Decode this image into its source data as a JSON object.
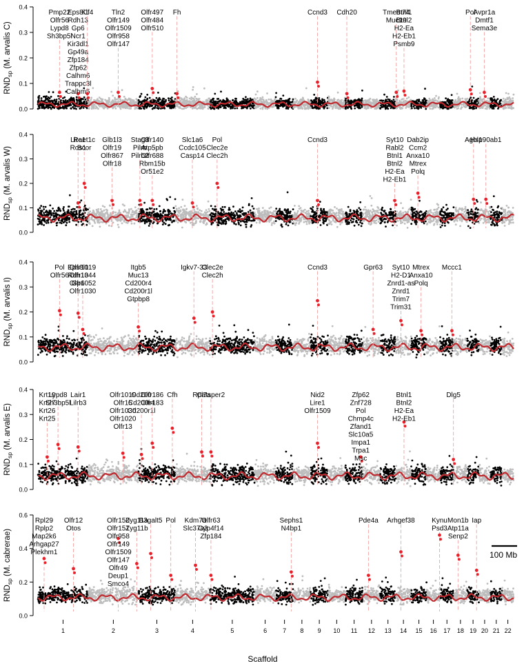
{
  "chart_data": {
    "type": "scatter",
    "xlabel": "Scaffold",
    "scale_bar_label": "100 Mb",
    "x_ticks": [
      "1",
      "2",
      "3",
      "4",
      "5",
      "6",
      "7",
      "8",
      "9",
      "10",
      "11",
      "12",
      "13",
      "14",
      "15",
      "16",
      "17",
      "18",
      "19",
      "20",
      "21",
      "22"
    ],
    "colors": {
      "chrom_dark": "#000000",
      "chrom_light": "#bdbdbd",
      "trend": "#c0282d",
      "peak": "#e8202a",
      "gene_line": "#f4a7a7"
    },
    "panels": [
      {
        "ylabel": "RND",
        "ylabel_sub": "sp",
        "ylabel_species": "(M. arvalis C)",
        "ylim": [
          0,
          0.4
        ],
        "yticks": [
          "0.0",
          "0.1",
          "0.2",
          "0.3",
          "0.4"
        ],
        "yvals": [
          0,
          0.1,
          0.2,
          0.3,
          0.4
        ],
        "baseline": 0.02,
        "spread": 0.02,
        "genes": [
          {
            "x": 0.7,
            "peak": 0.065,
            "labels": [
              "Pmp22",
              "Olfr56",
              "Lypd8",
              "Sh3bp5l"
            ]
          },
          {
            "x": 1.3,
            "peak": 0.06,
            "labels": [
              "Eps8l1",
              "Rdh13",
              "Gp6",
              "Ncr1",
              "Kir3dl1",
              "Gp49a",
              "Zfp184",
              "Zfp62",
              "Calhm6",
              "Trappc3l",
              "Calhm5"
            ]
          },
          {
            "x": 1.6,
            "peak": 0.06,
            "labels": [
              "Kif4"
            ]
          },
          {
            "x": 2.6,
            "peak": 0.065,
            "labels": [
              "Tln2",
              "Olfr149",
              "Olfr1509",
              "Olfr958",
              "Olfr147"
            ]
          },
          {
            "x": 3.7,
            "peak": 0.08,
            "labels": [
              "Olfr497",
              "Olfr484",
              "Olfr510"
            ]
          },
          {
            "x": 4.5,
            "peak": 0.06,
            "labels": [
              "Fh"
            ]
          },
          {
            "x": 9.05,
            "peak": 0.105,
            "labels": [
              "Ccnd3"
            ]
          },
          {
            "x": 10.0,
            "peak": 0.06,
            "labels": [
              "Cdh20"
            ]
          },
          {
            "x": 11.6,
            "peak": 0.065,
            "labels": [
              "Tmem74",
              "Muc19"
            ]
          },
          {
            "x": 11.85,
            "peak": 0.07,
            "labels": [
              "Btnl1",
              "Btnl2",
              "H2-Ea",
              "H2-Eb1",
              "Psmb9"
            ]
          },
          {
            "x": 14.0,
            "peak": 0.075,
            "labels": [
              "Pol"
            ]
          },
          {
            "x": 14.45,
            "peak": 0.065,
            "labels": [
              "Avpr1a",
              "Dmtf1",
              "Sema3e"
            ]
          }
        ]
      },
      {
        "ylabel": "RND",
        "ylabel_sub": "sp",
        "ylabel_species": "(M. arvalis W)",
        "ylim": [
          0,
          0.4
        ],
        "yticks": [
          "0.0",
          "0.1",
          "0.2",
          "0.3",
          "0.4"
        ],
        "yvals": [
          0,
          0.1,
          0.2,
          0.3,
          0.4
        ],
        "baseline": 0.065,
        "spread": 0.03,
        "genes": [
          {
            "x": 1.3,
            "peak": 0.12,
            "labels": [
              "Lire1",
              "Ros1"
            ]
          },
          {
            "x": 1.5,
            "peak": 0.2,
            "labels": [
              "Raet1c",
              "Bcor"
            ]
          },
          {
            "x": 2.4,
            "peak": 0.13,
            "labels": [
              "Glb1l3",
              "Olfr19",
              "Olfr867",
              "Olfr18"
            ]
          },
          {
            "x": 3.3,
            "peak": 0.13,
            "labels": [
              "Stag3",
              "Pilrb",
              "Pilrb2"
            ]
          },
          {
            "x": 3.7,
            "peak": 0.13,
            "labels": [
              "Olfr140",
              "Atp5pb",
              "Olfr688",
              "Rbm15b",
              "Or51e2"
            ]
          },
          {
            "x": 5.0,
            "peak": 0.12,
            "labels": [
              "Slc1a6",
              "Ccdc105",
              "Casp14"
            ]
          },
          {
            "x": 5.8,
            "peak": 0.2,
            "labels": [
              "Pol",
              "Clec2e",
              "Clec2h"
            ]
          },
          {
            "x": 9.05,
            "peak": 0.13,
            "labels": [
              "Ccnd3"
            ]
          },
          {
            "x": 11.55,
            "peak": 0.13,
            "labels": [
              "Syt10",
              "Rabl2",
              "Btnl1",
              "Btnl2",
              "H2-Ea",
              "H2-Eb1"
            ]
          },
          {
            "x": 12.3,
            "peak": 0.16,
            "labels": [
              "Dab2ip",
              "Ccm2",
              "Anxa10",
              "Mtrex",
              "Polq"
            ]
          },
          {
            "x": 14.1,
            "peak": 0.135,
            "labels": [
              "Agbl1"
            ]
          },
          {
            "x": 14.5,
            "peak": 0.135,
            "labels": [
              "Hsp90ab1"
            ]
          }
        ]
      },
      {
        "ylabel": "RND",
        "ylabel_sub": "sp",
        "ylabel_species": "(M. arvalis I)",
        "ylim": [
          0,
          0.4
        ],
        "yticks": [
          "0.0",
          "0.1",
          "0.2",
          "0.3",
          "0.4"
        ],
        "yvals": [
          0,
          0.1,
          0.2,
          0.3,
          0.4
        ],
        "baseline": 0.065,
        "spread": 0.03,
        "genes": [
          {
            "x": 0.7,
            "peak": 0.205,
            "labels": [
              "Pol",
              "Olfr56"
            ]
          },
          {
            "x": 1.3,
            "peak": 0.195,
            "labels": [
              "Eps8l1",
              "Rdh13",
              "Gp6"
            ]
          },
          {
            "x": 1.45,
            "peak": 0.13,
            "labels": [
              "Olfr1019",
              "Olfr1044",
              "Olfr1052",
              "Olfr1030"
            ]
          },
          {
            "x": 3.25,
            "peak": 0.14,
            "labels": [
              "Itgb5",
              "Muc13",
              "Cd200r4",
              "Cd200r1l",
              "Gtpbp8"
            ]
          },
          {
            "x": 5.05,
            "peak": 0.175,
            "labels": [
              "Igkv7-33"
            ]
          },
          {
            "x": 5.65,
            "peak": 0.2,
            "labels": [
              "Clec2e",
              "Clec2h"
            ]
          },
          {
            "x": 9.05,
            "peak": 0.245,
            "labels": [
              "Ccnd3"
            ]
          },
          {
            "x": 10.85,
            "peak": 0.13,
            "labels": [
              "Gpr63"
            ]
          },
          {
            "x": 11.75,
            "peak": 0.165,
            "labels": [
              "Syt10",
              "H2-D1",
              "Znrd1-as",
              "Znrd1",
              "Trim7",
              "Trim31"
            ]
          },
          {
            "x": 12.4,
            "peak": 0.125,
            "labels": [
              "Mtrex",
              "Anxa10",
              "Polq"
            ]
          },
          {
            "x": 13.4,
            "peak": 0.125,
            "labels": [
              "Mccc1"
            ]
          }
        ]
      },
      {
        "ylabel": "RND",
        "ylabel_sub": "sp",
        "ylabel_species": "(M. arvalis E)",
        "ylim": [
          0,
          0.4
        ],
        "yticks": [
          "0.0",
          "0.1",
          "0.2",
          "0.3",
          "0.4"
        ],
        "yvals": [
          0,
          0.1,
          0.2,
          0.3,
          0.4
        ],
        "baseline": 0.06,
        "spread": 0.03,
        "genes": [
          {
            "x": 0.3,
            "peak": 0.13,
            "labels": [
              "Krt10",
              "Krt27",
              "Krt26",
              "Krt25"
            ]
          },
          {
            "x": 0.65,
            "peak": 0.18,
            "labels": [
              "Lypd8",
              "Sh3bp5l"
            ]
          },
          {
            "x": 1.3,
            "peak": 0.17,
            "labels": [
              "Lair1",
              "Lilrb3"
            ]
          },
          {
            "x": 2.75,
            "peak": 0.145,
            "labels": [
              "Olfr1019",
              "Olfr15",
              "Olfr1030",
              "Olfr1020",
              "Olfr13"
            ]
          },
          {
            "x": 3.35,
            "peak": 0.14,
            "labels": [
              "Cd200",
              "Cd200r4",
              "Cd200r1l"
            ]
          },
          {
            "x": 3.7,
            "peak": 0.185,
            "labels": [
              "Olfr186",
              "Olfr183"
            ]
          },
          {
            "x": 4.35,
            "peak": 0.245,
            "labels": [
              "Cfh"
            ]
          },
          {
            "x": 5.3,
            "peak": 0.15,
            "labels": [
              "Rpl7a"
            ]
          },
          {
            "x": 5.6,
            "peak": 0.15,
            "labels": [
              "Catsper2"
            ]
          },
          {
            "x": 9.05,
            "peak": 0.185,
            "labels": [
              "Nid2",
              "Lire1",
              "Olfr1509"
            ]
          },
          {
            "x": 10.45,
            "peak": 0.13,
            "labels": [
              "Zfp62",
              "Znf728",
              "Pol",
              "Chmp4c",
              "Zfand1",
              "Slc10a5",
              "Impa1",
              "Trpa1",
              "Msc"
            ]
          },
          {
            "x": 11.85,
            "peak": 0.27,
            "labels": [
              "Btnl1",
              "Btnl2",
              "H2-Ea",
              "H2-Eb1"
            ]
          },
          {
            "x": 13.45,
            "peak": 0.12,
            "labels": [
              "Dlg5"
            ]
          }
        ]
      },
      {
        "ylabel": "RND",
        "ylabel_sub": "sp",
        "ylabel_species": "(M. cabrerae)",
        "ylim": [
          0,
          0.6
        ],
        "yticks": [
          "0.0",
          "0.2",
          "0.4",
          "0.6"
        ],
        "yvals": [
          0,
          0.2,
          0.4,
          0.6
        ],
        "baseline": 0.12,
        "spread": 0.04,
        "genes": [
          {
            "x": 0.2,
            "peak": 0.34,
            "labels": [
              "Rpl29",
              "Rplp2",
              "Map2k6",
              "Arhgap27",
              "Plekhm1"
            ]
          },
          {
            "x": 1.15,
            "peak": 0.28,
            "labels": [
              "Olfr12",
              "Otos"
            ]
          },
          {
            "x": 2.6,
            "peak": 0.46,
            "labels": [
              "Olfr150",
              "Olfr151",
              "Olfr958",
              "Olfr149",
              "Olfr1509",
              "Olfr147",
              "Olfr49",
              "Deup1",
              "Smco4"
            ]
          },
          {
            "x": 3.2,
            "peak": 0.31,
            "labels": [
              "Zyg11a",
              "Zyg11b"
            ]
          },
          {
            "x": 3.65,
            "peak": 0.37,
            "labels": [
              "B3galt5"
            ]
          },
          {
            "x": 4.3,
            "peak": 0.24,
            "labels": [
              "Pol"
            ]
          },
          {
            "x": 5.1,
            "peak": 0.3,
            "labels": [
              "Kdm7a",
              "Slc37a3"
            ]
          },
          {
            "x": 5.6,
            "peak": 0.24,
            "labels": [
              "Olfr63",
              "Cyp4f14",
              "Zfp184"
            ]
          },
          {
            "x": 8.2,
            "peak": 0.26,
            "labels": [
              "Sephs1",
              "N4bp1"
            ]
          },
          {
            "x": 10.7,
            "peak": 0.24,
            "labels": [
              "Pde4a"
            ]
          },
          {
            "x": 11.75,
            "peak": 0.38,
            "labels": [
              "Arhgef38"
            ]
          },
          {
            "x": 13.0,
            "peak": 0.48,
            "labels": [
              "Kynu",
              "Psd3"
            ]
          },
          {
            "x": 13.6,
            "peak": 0.36,
            "labels": [
              "Mon1b",
              "Atp11a",
              "Senp2"
            ]
          },
          {
            "x": 14.2,
            "peak": 0.27,
            "labels": [
              "Iap"
            ]
          }
        ]
      }
    ]
  }
}
